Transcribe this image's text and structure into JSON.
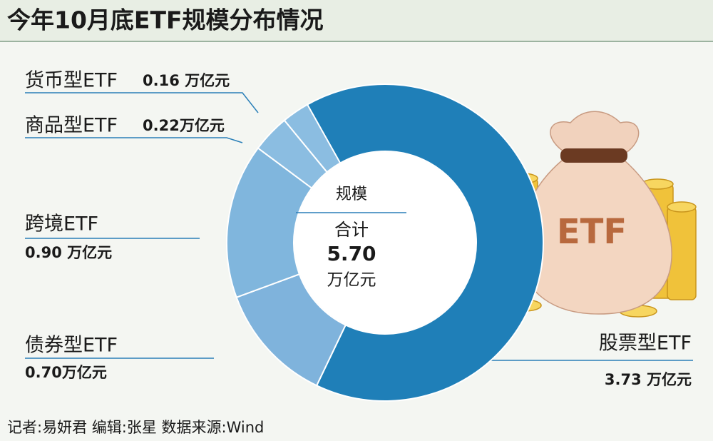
{
  "chart_data": {
    "type": "donut",
    "title": "今年10月底ETF规模分布情况",
    "categories": [
      "股票型ETF",
      "债券型ETF",
      "跨境ETF",
      "商品型ETF",
      "货币型ETF"
    ],
    "values": [
      3.73,
      0.7,
      0.9,
      0.22,
      0.16
    ],
    "value_labels": [
      "3.73 万亿元",
      "0.70万亿元",
      "0.90 万亿元",
      "0.22万亿元",
      "0.16 万亿元"
    ],
    "colors": [
      "#1f7fb8",
      "#7fb3dc",
      "#80b6dd",
      "#8bbde1",
      "#8bbde1"
    ],
    "center_title": "规模",
    "total_name": "合计",
    "total": {
      "value": 5.7,
      "label": "5.70"
    },
    "total_unit": "万亿元"
  },
  "illustration_label": "ETF",
  "footer": "记者:易妍君  编辑:张星  数据来源:Wind"
}
